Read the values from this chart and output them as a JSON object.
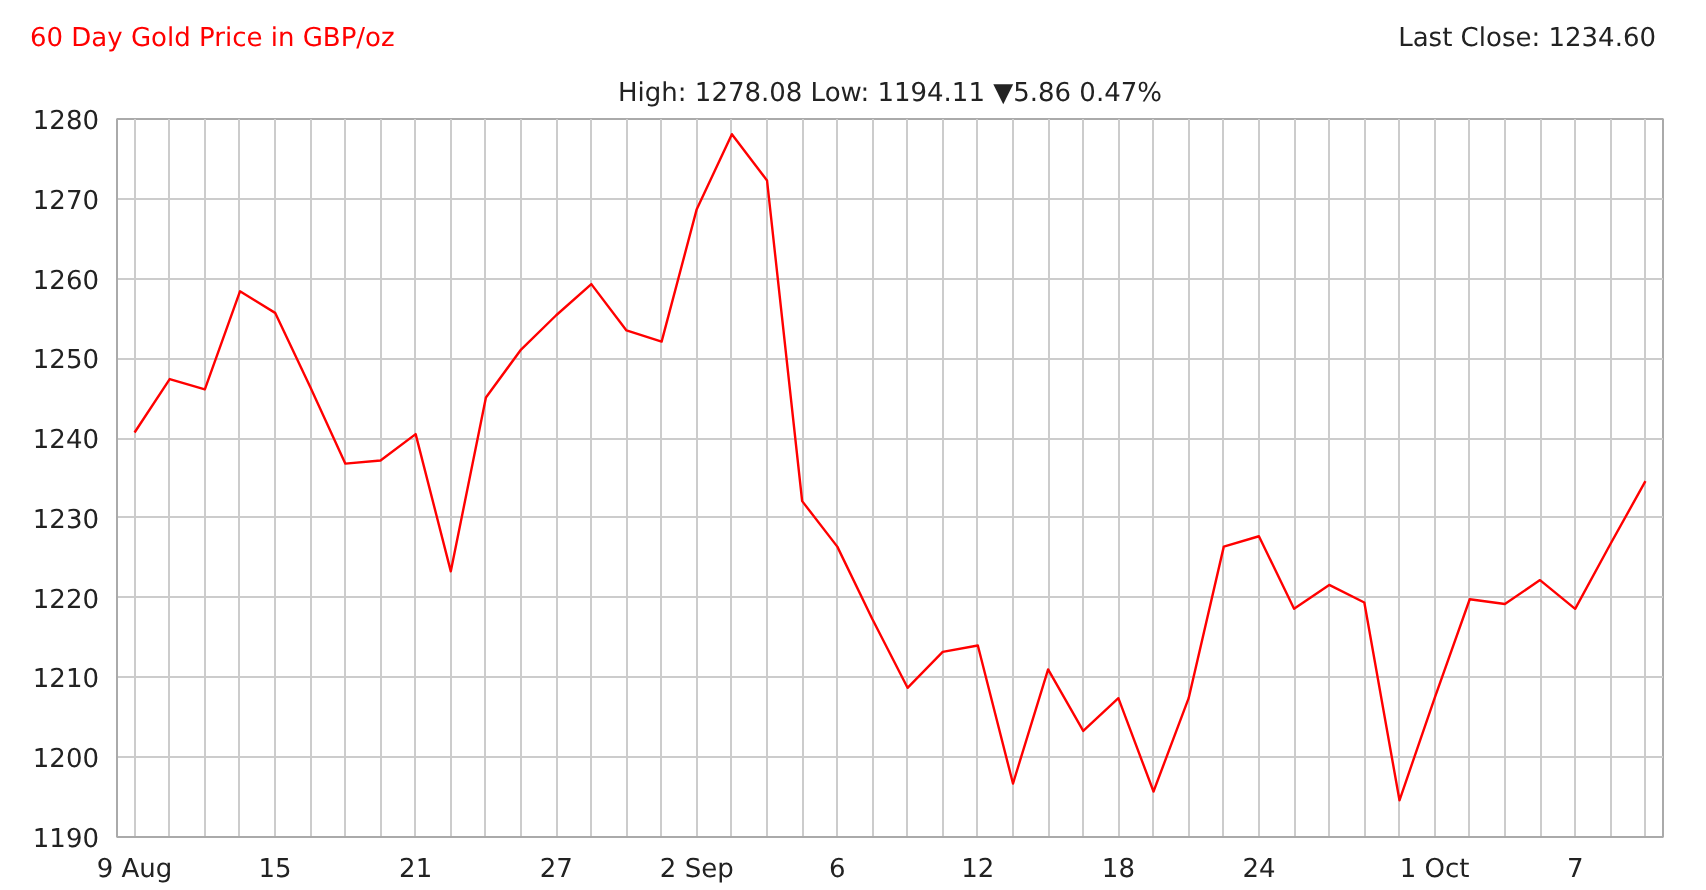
{
  "chart_data": {
    "type": "line",
    "title": "60 Day Gold Price in GBP/oz",
    "subtitle": "High: 1278.08 Low: 1194.11 ▼5.86 0.47%",
    "annotations": [
      "Last Close: 1234.60"
    ],
    "categories": [
      "9 Aug",
      null,
      null,
      null,
      "15",
      null,
      null,
      null,
      "21",
      null,
      null,
      null,
      "27",
      null,
      null,
      null,
      "2 Sep",
      null,
      null,
      null,
      "6",
      null,
      null,
      null,
      "12",
      null,
      null,
      null,
      "18",
      null,
      null,
      null,
      "24",
      null,
      null,
      null,
      null,
      "1 Oct",
      null,
      null,
      null,
      "7",
      null,
      null
    ],
    "series": [
      {
        "color": "#ff0000",
        "values": [
          1240.7,
          1247.4,
          1246.1,
          1258.4,
          1255.7,
          1246.4,
          1236.8,
          1237.2,
          1240.5,
          1223.3,
          1245.1,
          1251.1,
          1255.4,
          1259.3,
          1253.5,
          1252.1,
          1268.7,
          1278.1,
          1272.3,
          1232.1,
          1226.4,
          1217.3,
          1208.7,
          1213.2,
          1214.0,
          1196.7,
          1211.0,
          1203.3,
          1207.4,
          1195.7,
          1207.4,
          1226.4,
          1227.7,
          1218.6,
          1221.6,
          1219.4,
          1194.6,
          1207.4,
          1219.8,
          1219.2,
          1222.2,
          1218.6,
          1226.7,
          1234.6
        ]
      }
    ],
    "ylim": [
      1190,
      1280
    ],
    "yticks": [
      1190,
      1200,
      1210,
      1220,
      1230,
      1240,
      1250,
      1260,
      1270,
      1280
    ],
    "grid": true,
    "marker": "none",
    "line_style": "solid"
  }
}
